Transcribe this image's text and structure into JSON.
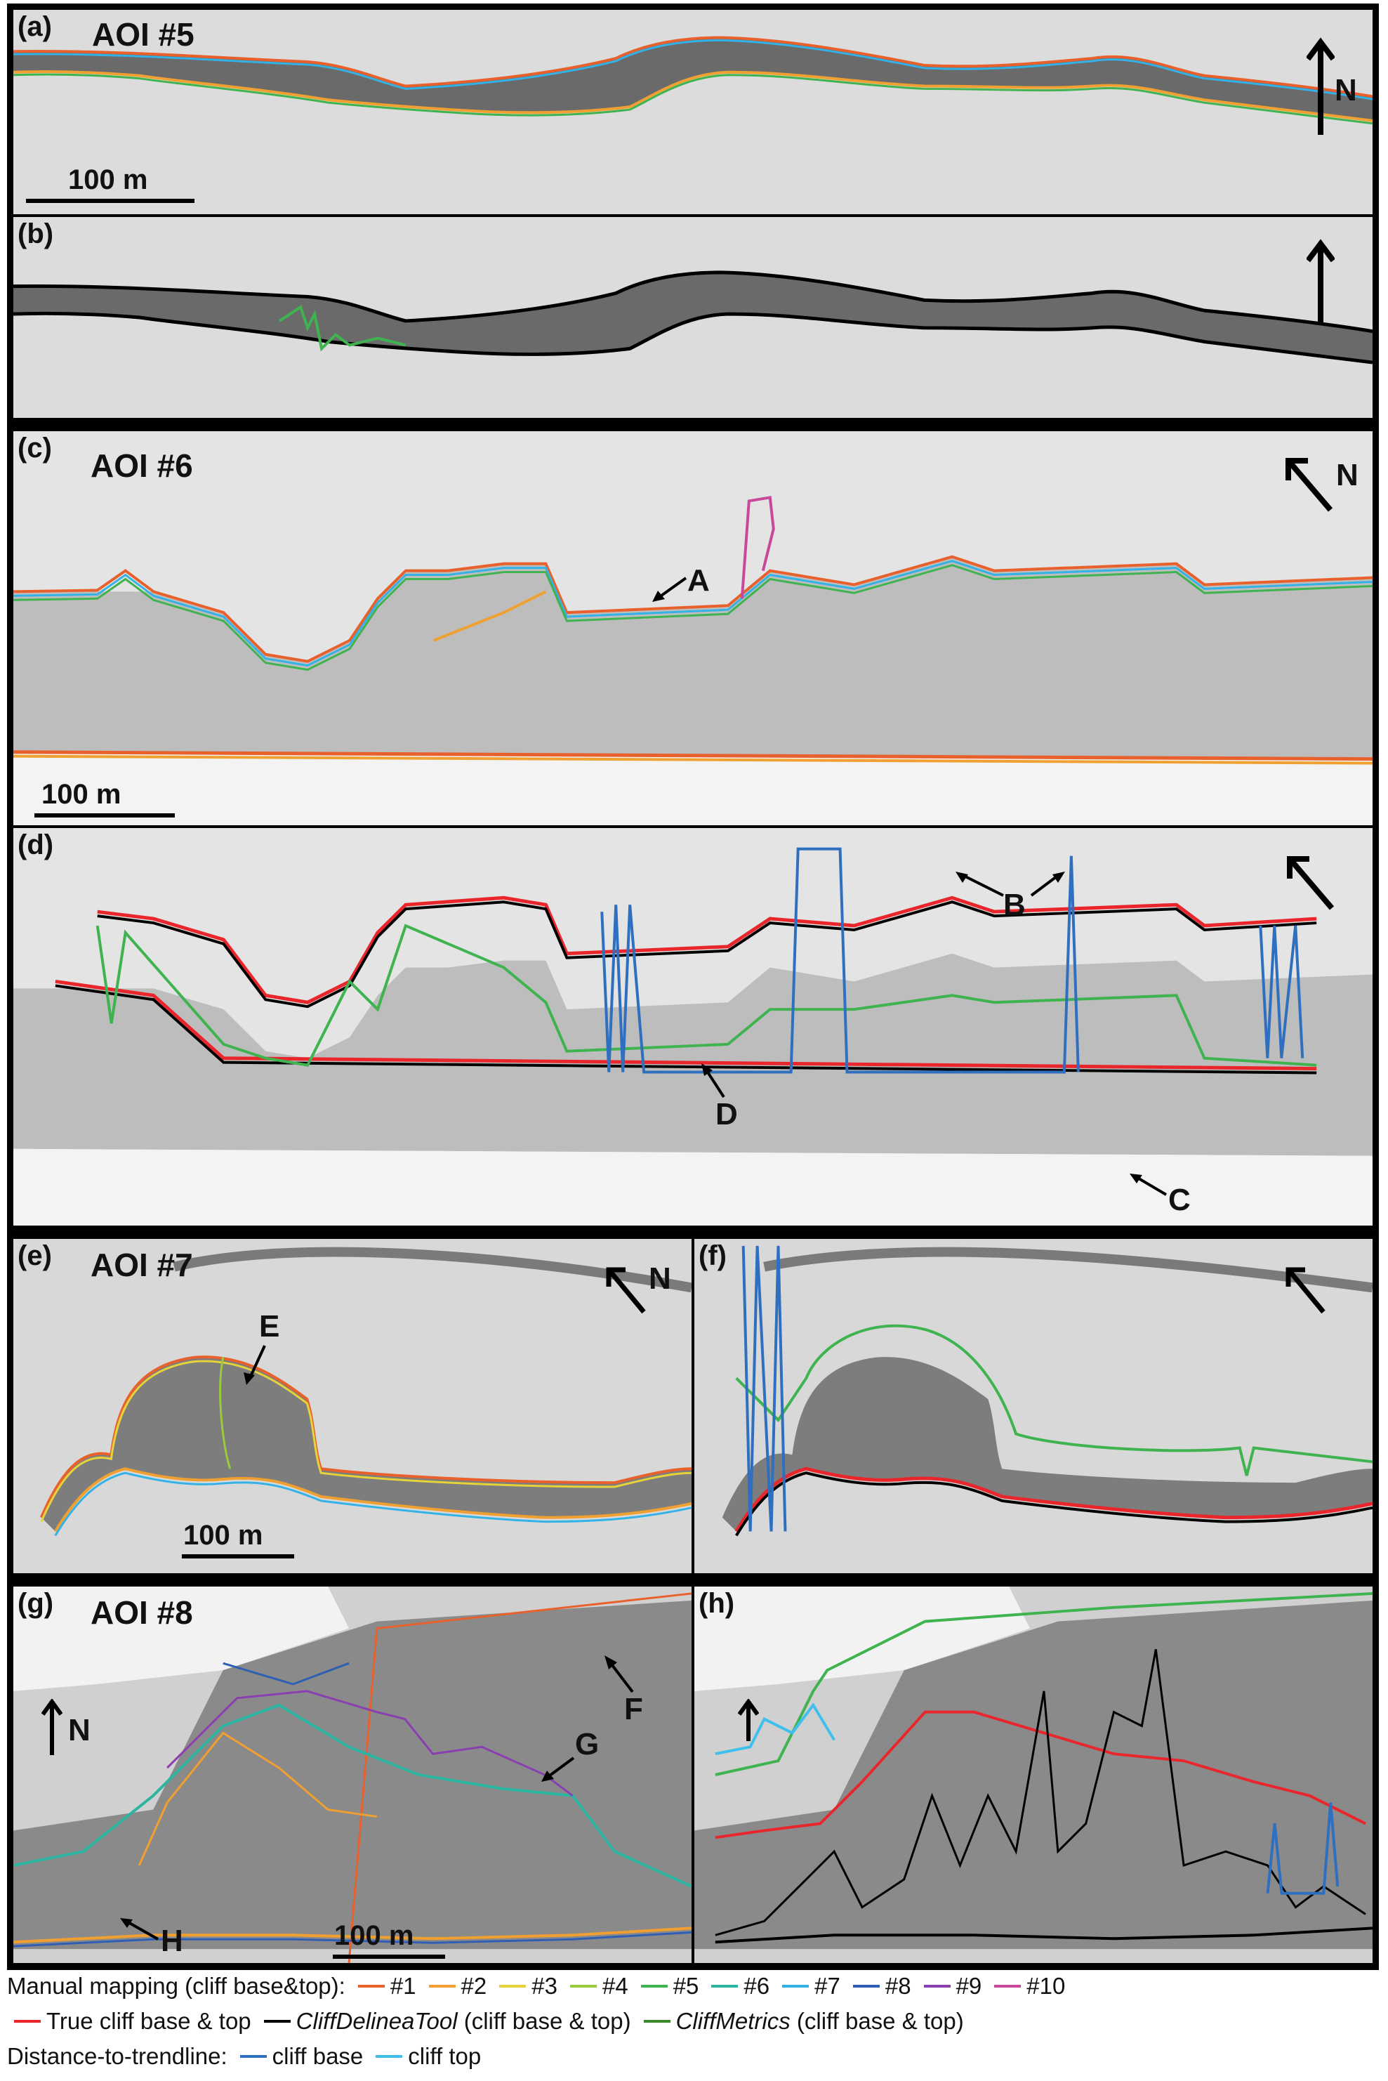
{
  "panels": {
    "a": {
      "label": "(a)"
    },
    "b": {
      "label": "(b)"
    },
    "c": {
      "label": "(c)"
    },
    "d": {
      "label": "(d)"
    },
    "e": {
      "label": "(e)"
    },
    "f": {
      "label": "(f)"
    },
    "g": {
      "label": "(g)"
    },
    "h": {
      "label": "(h)"
    }
  },
  "aoi_titles": {
    "aoi5": "AOI #5",
    "aoi6": "AOI #6",
    "aoi7": "AOI #7",
    "aoi8": "AOI #8"
  },
  "north_label": "N",
  "scale_label": "100 m",
  "markers": {
    "A": "A",
    "B": "B",
    "C": "C",
    "D": "D",
    "E": "E",
    "F": "F",
    "G": "G",
    "H": "H"
  },
  "legend": {
    "manual_title": "Manual mapping (cliff base&top):",
    "manual_items": [
      {
        "label": "#1",
        "color": "#e8612c"
      },
      {
        "label": "#2",
        "color": "#f0a030"
      },
      {
        "label": "#3",
        "color": "#e6d33a"
      },
      {
        "label": "#4",
        "color": "#9acb3c"
      },
      {
        "label": "#5",
        "color": "#3fb34f"
      },
      {
        "label": "#6",
        "color": "#2bb5a0"
      },
      {
        "label": "#7",
        "color": "#33b2e8"
      },
      {
        "label": "#8",
        "color": "#2f5fb3"
      },
      {
        "label": "#9",
        "color": "#8a3fb0"
      },
      {
        "label": "#10",
        "color": "#c8489c"
      }
    ],
    "true_label": "True cliff base & top",
    "true_color": "#e8262c",
    "tool_name": "CliffDelineaTool",
    "tool_suffix": " (cliff base & top)",
    "tool_color": "#000000",
    "metrics_name": "CliffMetrics",
    "metrics_suffix": " (cliff base & top)",
    "metrics_color": "#3d8a2e",
    "trend_title": "Distance-to-trendline:",
    "trend_base_label": "cliff base",
    "trend_base_color": "#2f6fc0",
    "trend_top_label": "cliff top",
    "trend_top_color": "#3fc0ec"
  }
}
